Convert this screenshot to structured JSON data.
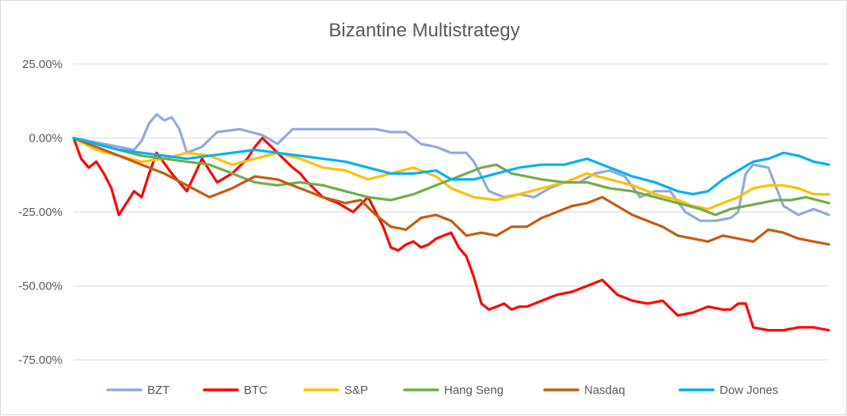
{
  "chart_data": {
    "type": "line",
    "title": "Bizantine Multistrategy",
    "xlabel": "",
    "ylabel": "",
    "ylim": [
      -0.75,
      0.25
    ],
    "yticks": [
      0.25,
      0,
      -0.25,
      -0.5,
      -0.75
    ],
    "ytick_labels": [
      "25.00%",
      "0.00%",
      "-25.00%",
      "-50.00%",
      "-75.00%"
    ],
    "grid": "horizontal",
    "legend": "bottom",
    "x_index_range": [
      0,
      100
    ],
    "series": [
      {
        "name": "BZT",
        "color": "#8FAADC",
        "x": [
          0,
          2,
          4,
          6,
          8,
          9,
          10,
          11,
          12,
          13,
          14,
          15,
          17,
          19,
          22,
          25,
          27,
          29,
          31,
          34,
          36,
          38,
          40,
          42,
          44,
          46,
          48,
          50,
          52,
          53,
          55,
          57,
          59,
          61,
          63,
          65,
          67,
          69,
          71,
          73,
          75,
          77,
          79,
          81,
          83,
          85,
          87,
          88,
          89,
          90,
          92,
          94,
          96,
          98,
          100
        ],
        "values": [
          0,
          -0.01,
          -0.02,
          -0.03,
          -0.04,
          -0.01,
          0.05,
          0.08,
          0.06,
          0.07,
          0.03,
          -0.05,
          -0.03,
          0.02,
          0.03,
          0.01,
          -0.02,
          0.03,
          0.03,
          0.03,
          0.03,
          0.03,
          0.03,
          0.02,
          0.02,
          -0.02,
          -0.03,
          -0.05,
          -0.05,
          -0.08,
          -0.18,
          -0.2,
          -0.19,
          -0.2,
          -0.17,
          -0.15,
          -0.15,
          -0.12,
          -0.11,
          -0.13,
          -0.2,
          -0.18,
          -0.18,
          -0.25,
          -0.28,
          -0.28,
          -0.27,
          -0.25,
          -0.12,
          -0.09,
          -0.1,
          -0.23,
          -0.26,
          -0.24,
          -0.26
        ]
      },
      {
        "name": "BTC",
        "color": "#FF0000",
        "x": [
          0,
          1,
          2,
          3,
          4,
          5,
          6,
          7,
          8,
          9,
          10,
          11,
          13,
          15,
          17,
          19,
          21,
          23,
          24,
          25,
          27,
          29,
          30,
          31,
          33,
          35,
          37,
          39,
          41,
          42,
          43,
          44,
          45,
          46,
          47,
          48,
          49,
          50,
          51,
          52,
          53,
          54,
          55,
          56,
          57,
          58,
          59,
          60,
          62,
          64,
          66,
          68,
          70,
          72,
          74,
          76,
          78,
          80,
          82,
          84,
          86,
          87,
          88,
          89,
          90,
          92,
          94,
          96,
          98,
          100
        ],
        "values": [
          0,
          -0.07,
          -0.1,
          -0.08,
          -0.12,
          -0.17,
          -0.26,
          -0.22,
          -0.18,
          -0.2,
          -0.12,
          -0.05,
          -0.12,
          -0.18,
          -0.07,
          -0.15,
          -0.12,
          -0.07,
          -0.03,
          0,
          -0.05,
          -0.1,
          -0.12,
          -0.15,
          -0.2,
          -0.22,
          -0.25,
          -0.2,
          -0.3,
          -0.37,
          -0.38,
          -0.36,
          -0.35,
          -0.37,
          -0.36,
          -0.34,
          -0.33,
          -0.32,
          -0.37,
          -0.4,
          -0.47,
          -0.56,
          -0.58,
          -0.57,
          -0.56,
          -0.58,
          -0.57,
          -0.57,
          -0.55,
          -0.53,
          -0.52,
          -0.5,
          -0.48,
          -0.53,
          -0.55,
          -0.56,
          -0.55,
          -0.6,
          -0.59,
          -0.57,
          -0.58,
          -0.58,
          -0.56,
          -0.56,
          -0.64,
          -0.65,
          -0.65,
          -0.64,
          -0.64,
          -0.65
        ]
      },
      {
        "name": "S&P",
        "color": "#FFC000",
        "x": [
          0,
          3,
          6,
          9,
          12,
          15,
          18,
          21,
          24,
          27,
          30,
          33,
          36,
          39,
          42,
          45,
          48,
          50,
          53,
          56,
          59,
          62,
          65,
          68,
          71,
          74,
          77,
          80,
          82,
          84,
          86,
          88,
          90,
          92,
          94,
          96,
          98,
          100
        ],
        "values": [
          0,
          -0.04,
          -0.06,
          -0.08,
          -0.07,
          -0.05,
          -0.06,
          -0.09,
          -0.07,
          -0.05,
          -0.07,
          -0.1,
          -0.11,
          -0.14,
          -0.12,
          -0.1,
          -0.13,
          -0.17,
          -0.2,
          -0.21,
          -0.19,
          -0.17,
          -0.15,
          -0.12,
          -0.14,
          -0.16,
          -0.19,
          -0.21,
          -0.23,
          -0.24,
          -0.22,
          -0.2,
          -0.17,
          -0.16,
          -0.16,
          -0.17,
          -0.19,
          -0.19
        ]
      },
      {
        "name": "Hang Seng",
        "color": "#70AD47",
        "x": [
          0,
          3,
          6,
          9,
          12,
          15,
          18,
          21,
          24,
          27,
          30,
          33,
          36,
          39,
          42,
          45,
          48,
          50,
          52,
          54,
          56,
          58,
          60,
          62,
          65,
          68,
          71,
          74,
          77,
          80,
          83,
          85,
          87,
          89,
          91,
          93,
          95,
          97,
          100
        ],
        "values": [
          0,
          -0.02,
          -0.04,
          -0.06,
          -0.07,
          -0.08,
          -0.09,
          -0.12,
          -0.15,
          -0.16,
          -0.15,
          -0.16,
          -0.18,
          -0.2,
          -0.21,
          -0.19,
          -0.16,
          -0.14,
          -0.12,
          -0.1,
          -0.09,
          -0.12,
          -0.13,
          -0.14,
          -0.15,
          -0.15,
          -0.17,
          -0.18,
          -0.2,
          -0.22,
          -0.24,
          -0.26,
          -0.24,
          -0.23,
          -0.22,
          -0.21,
          -0.21,
          -0.2,
          -0.22
        ]
      },
      {
        "name": "Nasdaq",
        "color": "#C55A11",
        "x": [
          0,
          3,
          6,
          9,
          12,
          15,
          18,
          21,
          24,
          27,
          30,
          33,
          36,
          38,
          40,
          42,
          44,
          46,
          48,
          50,
          52,
          54,
          56,
          58,
          60,
          62,
          64,
          66,
          68,
          70,
          72,
          74,
          76,
          78,
          80,
          82,
          84,
          86,
          88,
          90,
          92,
          94,
          96,
          98,
          100
        ],
        "values": [
          0,
          -0.03,
          -0.06,
          -0.09,
          -0.12,
          -0.16,
          -0.2,
          -0.17,
          -0.13,
          -0.14,
          -0.17,
          -0.2,
          -0.22,
          -0.21,
          -0.26,
          -0.3,
          -0.31,
          -0.27,
          -0.26,
          -0.28,
          -0.33,
          -0.32,
          -0.33,
          -0.3,
          -0.3,
          -0.27,
          -0.25,
          -0.23,
          -0.22,
          -0.2,
          -0.23,
          -0.26,
          -0.28,
          -0.3,
          -0.33,
          -0.34,
          -0.35,
          -0.33,
          -0.34,
          -0.35,
          -0.31,
          -0.32,
          -0.34,
          -0.35,
          -0.36
        ]
      },
      {
        "name": "Dow Jones",
        "color": "#00B0F0",
        "x": [
          0,
          3,
          6,
          9,
          12,
          15,
          18,
          21,
          24,
          27,
          30,
          33,
          36,
          39,
          42,
          45,
          48,
          50,
          53,
          56,
          59,
          62,
          65,
          68,
          71,
          74,
          77,
          80,
          82,
          84,
          86,
          88,
          90,
          92,
          94,
          96,
          98,
          100
        ],
        "values": [
          0,
          -0.02,
          -0.04,
          -0.05,
          -0.06,
          -0.07,
          -0.06,
          -0.05,
          -0.04,
          -0.05,
          -0.06,
          -0.07,
          -0.08,
          -0.1,
          -0.12,
          -0.12,
          -0.11,
          -0.14,
          -0.14,
          -0.12,
          -0.1,
          -0.09,
          -0.09,
          -0.07,
          -0.1,
          -0.13,
          -0.15,
          -0.18,
          -0.19,
          -0.18,
          -0.14,
          -0.11,
          -0.08,
          -0.07,
          -0.05,
          -0.06,
          -0.08,
          -0.09
        ]
      }
    ]
  }
}
